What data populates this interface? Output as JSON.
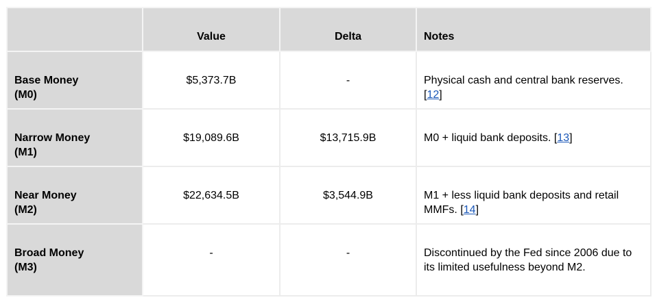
{
  "table": {
    "headers": [
      "",
      "Value",
      "Delta",
      "Notes"
    ],
    "rows": [
      {
        "label": [
          "Base Money",
          "(M0)"
        ],
        "value": "$5,373.7B",
        "delta": "-",
        "note": {
          "text": "Physical cash and central bank reserves. [",
          "ref": "12",
          "after": "]"
        }
      },
      {
        "label": [
          "Narrow Money",
          "(M1)"
        ],
        "value": "$19,089.6B",
        "delta": "$13,715.9B",
        "note": {
          "text": "M0 + liquid bank deposits. [",
          "ref": "13",
          "after": "]"
        }
      },
      {
        "label": [
          "Near Money",
          "(M2)"
        ],
        "value": "$22,634.5B",
        "delta": "$3,544.9B",
        "note": {
          "text": "M1 + less liquid bank deposits and retail MMFs. [",
          "ref": "14",
          "after": "]"
        }
      },
      {
        "label": [
          "Broad Money",
          "(M3)"
        ],
        "value": "-",
        "delta": "-",
        "note": {
          "text": "Discontinued by the Fed since 2006 due to its limited usefulness beyond M2."
        }
      }
    ]
  }
}
